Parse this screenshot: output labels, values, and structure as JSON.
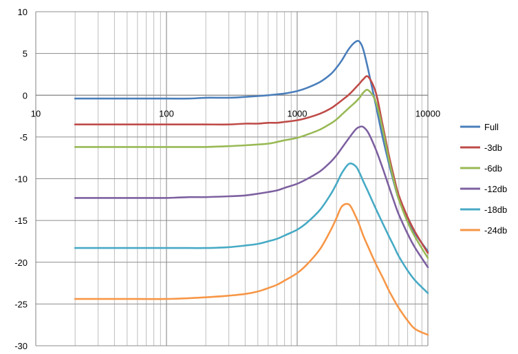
{
  "chart_data": {
    "type": "line",
    "x_scale": "log",
    "xlim": [
      10,
      10000
    ],
    "ylim": [
      -30,
      10
    ],
    "x_ticks": [
      "10",
      "100",
      "1000",
      "10000"
    ],
    "y_ticks": [
      "10",
      "5",
      "0",
      "-5",
      "-10",
      "-15",
      "-20",
      "-25",
      "-30"
    ],
    "grid": true,
    "legend_position": "right",
    "series": [
      {
        "name": "Full",
        "color": "#4a7ebb",
        "x": [
          20,
          40,
          60,
          100,
          150,
          200,
          300,
          400,
          500,
          600,
          700,
          800,
          1000,
          1200,
          1500,
          1800,
          2000,
          2200,
          2500,
          2800,
          3000,
          3200,
          3500,
          4000,
          4500,
          5000,
          5500,
          6000,
          7000,
          8000,
          10000
        ],
        "y": [
          -0.4,
          -0.4,
          -0.4,
          -0.4,
          -0.4,
          -0.3,
          -0.3,
          -0.2,
          -0.1,
          0.0,
          0.1,
          0.2,
          0.5,
          0.9,
          1.6,
          2.5,
          3.3,
          4.2,
          5.6,
          6.4,
          6.4,
          5.5,
          3.0,
          -1.2,
          -5.0,
          -8.0,
          -10.5,
          -12.5,
          -15.0,
          -16.6,
          -18.7
        ]
      },
      {
        "name": "-3db",
        "color": "#be4b48",
        "x": [
          20,
          40,
          60,
          100,
          150,
          200,
          300,
          400,
          500,
          600,
          700,
          800,
          1000,
          1200,
          1500,
          1800,
          2000,
          2200,
          2500,
          2800,
          3000,
          3200,
          3500,
          4000,
          4500,
          5000,
          5500,
          6000,
          7000,
          8000,
          10000
        ],
        "y": [
          -3.5,
          -3.5,
          -3.5,
          -3.5,
          -3.5,
          -3.5,
          -3.5,
          -3.4,
          -3.4,
          -3.3,
          -3.3,
          -3.2,
          -3.0,
          -2.7,
          -2.2,
          -1.6,
          -1.1,
          -0.6,
          0.1,
          0.9,
          1.4,
          1.9,
          2.2,
          0.3,
          -3.5,
          -7.0,
          -9.8,
          -12.0,
          -14.6,
          -16.4,
          -18.9
        ]
      },
      {
        "name": "-6db",
        "color": "#98b954",
        "x": [
          20,
          40,
          60,
          100,
          150,
          200,
          300,
          400,
          500,
          600,
          700,
          800,
          1000,
          1200,
          1500,
          1800,
          2000,
          2200,
          2500,
          2800,
          3000,
          3200,
          3500,
          4000,
          4500,
          5000,
          5500,
          6000,
          7000,
          8000,
          10000
        ],
        "y": [
          -6.2,
          -6.2,
          -6.2,
          -6.2,
          -6.2,
          -6.2,
          -6.1,
          -6.0,
          -5.9,
          -5.8,
          -5.6,
          -5.4,
          -5.1,
          -4.7,
          -4.1,
          -3.4,
          -2.9,
          -2.3,
          -1.5,
          -0.8,
          -0.3,
          0.3,
          0.6,
          -0.8,
          -4.0,
          -7.5,
          -10.3,
          -12.5,
          -15.2,
          -17.0,
          -19.5
        ]
      },
      {
        "name": "-12db",
        "color": "#7d60a0",
        "x": [
          20,
          40,
          60,
          100,
          150,
          200,
          300,
          400,
          500,
          600,
          700,
          800,
          1000,
          1200,
          1500,
          1800,
          2000,
          2200,
          2500,
          2800,
          3000,
          3200,
          3500,
          4000,
          4500,
          5000,
          5500,
          6000,
          7000,
          8000,
          10000
        ],
        "y": [
          -12.3,
          -12.3,
          -12.3,
          -12.3,
          -12.2,
          -12.2,
          -12.1,
          -12.0,
          -11.8,
          -11.6,
          -11.4,
          -11.1,
          -10.6,
          -10.0,
          -9.1,
          -8.0,
          -7.2,
          -6.3,
          -5.1,
          -4.1,
          -3.8,
          -3.8,
          -4.5,
          -6.5,
          -8.7,
          -10.8,
          -12.7,
          -14.3,
          -16.6,
          -18.3,
          -20.6
        ]
      },
      {
        "name": "-18db",
        "color": "#46aac5",
        "x": [
          20,
          40,
          60,
          100,
          150,
          200,
          300,
          400,
          500,
          600,
          700,
          800,
          1000,
          1200,
          1500,
          1800,
          2000,
          2200,
          2500,
          2800,
          3000,
          3200,
          3500,
          4000,
          4500,
          5000,
          5500,
          6000,
          7000,
          8000,
          10000
        ],
        "y": [
          -18.3,
          -18.3,
          -18.3,
          -18.3,
          -18.3,
          -18.3,
          -18.2,
          -18.0,
          -17.8,
          -17.5,
          -17.2,
          -16.8,
          -16.1,
          -15.2,
          -13.7,
          -11.9,
          -10.6,
          -9.3,
          -8.2,
          -8.5,
          -9.3,
          -10.3,
          -11.6,
          -13.6,
          -15.3,
          -16.8,
          -18.1,
          -19.3,
          -21.0,
          -22.2,
          -23.7
        ]
      },
      {
        "name": "-24db",
        "color": "#f79646",
        "x": [
          20,
          40,
          60,
          100,
          150,
          200,
          300,
          400,
          500,
          600,
          700,
          800,
          1000,
          1200,
          1500,
          1800,
          2000,
          2200,
          2500,
          2800,
          3000,
          3200,
          3500,
          4000,
          4500,
          5000,
          5500,
          6000,
          7000,
          8000,
          10000
        ],
        "y": [
          -24.4,
          -24.4,
          -24.4,
          -24.4,
          -24.3,
          -24.2,
          -24.0,
          -23.8,
          -23.5,
          -23.1,
          -22.7,
          -22.2,
          -21.3,
          -20.2,
          -18.4,
          -16.2,
          -14.7,
          -13.3,
          -13.1,
          -14.5,
          -15.6,
          -16.8,
          -18.2,
          -20.2,
          -21.8,
          -23.3,
          -24.5,
          -25.5,
          -27.0,
          -28.0,
          -28.7
        ]
      }
    ]
  }
}
